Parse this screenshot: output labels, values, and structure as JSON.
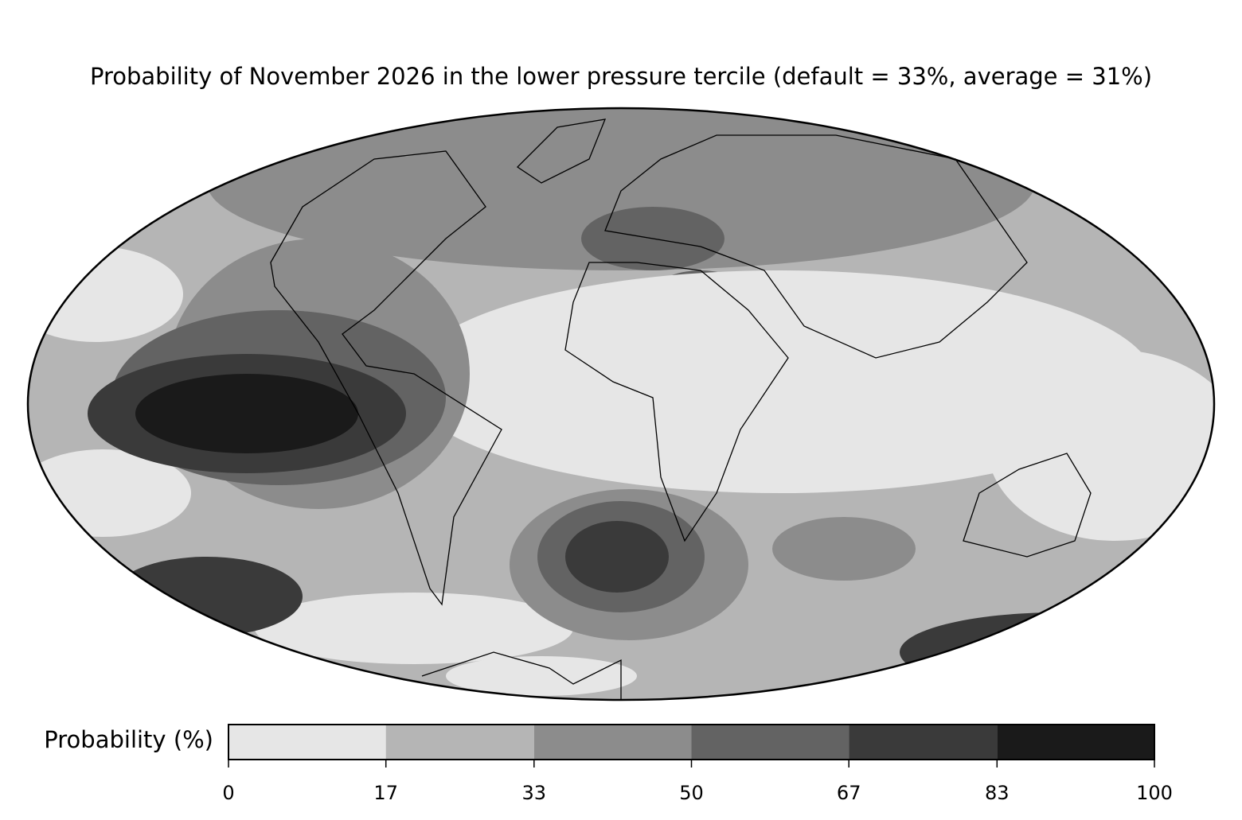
{
  "chart_data": {
    "type": "map",
    "title": "Probability of November 2026 in the lower pressure tercile (default = 33%, average = 31%)",
    "colorbar": {
      "label": "Probability (%)",
      "ticks": [
        0,
        17,
        33,
        50,
        67,
        83,
        100
      ],
      "colors": [
        "#e6e6e6",
        "#b5b5b5",
        "#8c8c8c",
        "#636363",
        "#3a3a3a",
        "#1a1a1a"
      ]
    }
  }
}
